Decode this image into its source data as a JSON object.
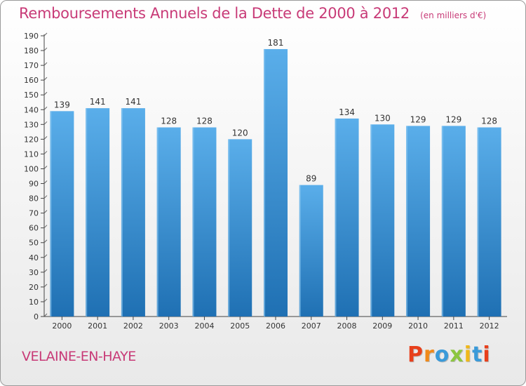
{
  "page": {
    "title": "Remboursements Annuels de la Dette de 2000 à 2012",
    "unit": "(en milliers d'€)",
    "commune": "VELAINE-EN-HAYE",
    "brand": "Proxiti"
  },
  "colors": {
    "title": "#c83a77",
    "bar_top": "#5aaeea",
    "bar_bottom": "#1f70b3",
    "brand_letters": [
      "#e8401c",
      "#f08a1a",
      "#3a9ad9",
      "#8cc63f",
      "#f0b81a",
      "#3a9ad9",
      "#e8401c"
    ]
  },
  "chart_data": {
    "type": "bar",
    "title": "Remboursements Annuels de la Dette de 2000 à 2012",
    "xlabel": "",
    "ylabel": "",
    "categories": [
      "2000",
      "2001",
      "2002",
      "2003",
      "2004",
      "2005",
      "2006",
      "2007",
      "2008",
      "2009",
      "2010",
      "2011",
      "2012"
    ],
    "values": [
      139,
      141,
      141,
      128,
      128,
      120,
      181,
      89,
      134,
      130,
      129,
      129,
      128
    ],
    "ylim": [
      0,
      190
    ],
    "yticks": [
      0,
      10,
      20,
      30,
      40,
      50,
      60,
      70,
      80,
      90,
      100,
      110,
      120,
      130,
      140,
      150,
      160,
      170,
      180,
      190
    ],
    "grid": false,
    "data_labels": true
  }
}
